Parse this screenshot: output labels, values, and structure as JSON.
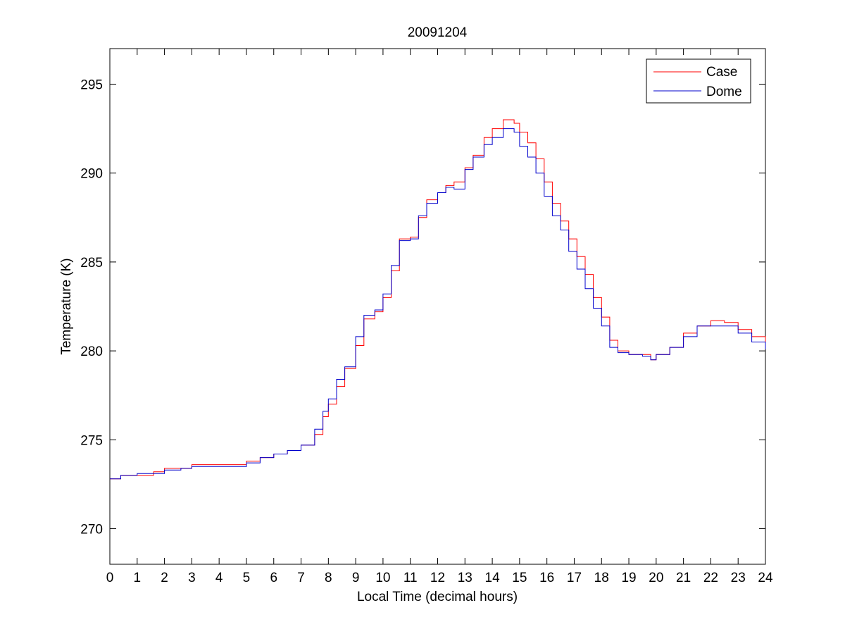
{
  "chart_data": {
    "type": "line",
    "title": "20091204",
    "xlabel": "Local Time (decimal hours)",
    "ylabel": "Temperature (K)",
    "xlim": [
      0,
      24
    ],
    "ylim": [
      268,
      297
    ],
    "xticks": [
      0,
      1,
      2,
      3,
      4,
      5,
      6,
      7,
      8,
      9,
      10,
      11,
      12,
      13,
      14,
      15,
      16,
      17,
      18,
      19,
      20,
      21,
      22,
      23,
      24
    ],
    "yticks": [
      270,
      275,
      280,
      285,
      290,
      295
    ],
    "grid": false,
    "legend_position": "top-right",
    "series": [
      {
        "name": "Case",
        "color": "#ff0000",
        "points": [
          [
            0,
            272.8
          ],
          [
            0.4,
            273.0
          ],
          [
            1.0,
            273.0
          ],
          [
            1.6,
            273.2
          ],
          [
            2.0,
            273.4
          ],
          [
            2.6,
            273.4
          ],
          [
            3.0,
            273.6
          ],
          [
            3.4,
            273.6
          ],
          [
            4.0,
            273.6
          ],
          [
            4.6,
            273.6
          ],
          [
            5.0,
            273.8
          ],
          [
            5.5,
            274.0
          ],
          [
            6.0,
            274.2
          ],
          [
            6.5,
            274.4
          ],
          [
            7.0,
            274.7
          ],
          [
            7.5,
            275.3
          ],
          [
            7.8,
            276.3
          ],
          [
            8.0,
            277.0
          ],
          [
            8.3,
            278.0
          ],
          [
            8.6,
            279.0
          ],
          [
            9.0,
            280.3
          ],
          [
            9.3,
            281.8
          ],
          [
            9.7,
            282.2
          ],
          [
            10.0,
            283.0
          ],
          [
            10.3,
            284.5
          ],
          [
            10.6,
            286.3
          ],
          [
            11.0,
            286.4
          ],
          [
            11.3,
            287.5
          ],
          [
            11.6,
            288.5
          ],
          [
            12.0,
            288.9
          ],
          [
            12.3,
            289.3
          ],
          [
            12.6,
            289.5
          ],
          [
            13.0,
            290.3
          ],
          [
            13.3,
            291.0
          ],
          [
            13.7,
            292.0
          ],
          [
            14.0,
            292.5
          ],
          [
            14.4,
            293.0
          ],
          [
            14.6,
            293.0
          ],
          [
            14.8,
            292.8
          ],
          [
            15.0,
            292.3
          ],
          [
            15.3,
            291.7
          ],
          [
            15.6,
            290.8
          ],
          [
            15.9,
            289.5
          ],
          [
            16.2,
            288.3
          ],
          [
            16.5,
            287.3
          ],
          [
            16.8,
            286.3
          ],
          [
            17.1,
            285.3
          ],
          [
            17.4,
            284.3
          ],
          [
            17.7,
            283.0
          ],
          [
            18.0,
            281.9
          ],
          [
            18.3,
            280.6
          ],
          [
            18.6,
            280.0
          ],
          [
            19.0,
            279.8
          ],
          [
            19.5,
            279.8
          ],
          [
            19.8,
            279.5
          ],
          [
            20.0,
            279.8
          ],
          [
            20.5,
            280.2
          ],
          [
            21.0,
            281.0
          ],
          [
            21.5,
            281.4
          ],
          [
            22.0,
            281.7
          ],
          [
            22.5,
            281.6
          ],
          [
            23.0,
            281.2
          ],
          [
            23.5,
            280.8
          ],
          [
            24.0,
            280.3
          ]
        ]
      },
      {
        "name": "Dome",
        "color": "#0000cc",
        "points": [
          [
            0,
            272.8
          ],
          [
            0.4,
            273.0
          ],
          [
            1.0,
            273.1
          ],
          [
            1.6,
            273.1
          ],
          [
            2.0,
            273.3
          ],
          [
            2.6,
            273.4
          ],
          [
            3.0,
            273.5
          ],
          [
            3.4,
            273.5
          ],
          [
            4.0,
            273.5
          ],
          [
            4.6,
            273.5
          ],
          [
            5.0,
            273.7
          ],
          [
            5.5,
            274.0
          ],
          [
            6.0,
            274.2
          ],
          [
            6.5,
            274.4
          ],
          [
            7.0,
            274.7
          ],
          [
            7.5,
            275.6
          ],
          [
            7.8,
            276.6
          ],
          [
            8.0,
            277.3
          ],
          [
            8.3,
            278.4
          ],
          [
            8.6,
            279.1
          ],
          [
            9.0,
            280.8
          ],
          [
            9.3,
            282.0
          ],
          [
            9.7,
            282.3
          ],
          [
            10.0,
            283.2
          ],
          [
            10.3,
            284.8
          ],
          [
            10.6,
            286.2
          ],
          [
            11.0,
            286.3
          ],
          [
            11.3,
            287.6
          ],
          [
            11.6,
            288.3
          ],
          [
            12.0,
            288.9
          ],
          [
            12.3,
            289.2
          ],
          [
            12.6,
            289.1
          ],
          [
            13.0,
            290.2
          ],
          [
            13.3,
            290.9
          ],
          [
            13.7,
            291.6
          ],
          [
            14.0,
            292.0
          ],
          [
            14.4,
            292.5
          ],
          [
            14.6,
            292.5
          ],
          [
            14.8,
            292.3
          ],
          [
            15.0,
            291.5
          ],
          [
            15.3,
            290.9
          ],
          [
            15.6,
            290.0
          ],
          [
            15.9,
            288.7
          ],
          [
            16.2,
            287.6
          ],
          [
            16.5,
            286.8
          ],
          [
            16.8,
            285.6
          ],
          [
            17.1,
            284.6
          ],
          [
            17.4,
            283.5
          ],
          [
            17.7,
            282.4
          ],
          [
            18.0,
            281.4
          ],
          [
            18.3,
            280.2
          ],
          [
            18.6,
            279.9
          ],
          [
            19.0,
            279.8
          ],
          [
            19.5,
            279.7
          ],
          [
            19.8,
            279.5
          ],
          [
            20.0,
            279.8
          ],
          [
            20.5,
            280.2
          ],
          [
            21.0,
            280.8
          ],
          [
            21.5,
            281.4
          ],
          [
            22.0,
            281.4
          ],
          [
            22.5,
            281.4
          ],
          [
            23.0,
            281.0
          ],
          [
            23.5,
            280.5
          ],
          [
            24.0,
            280.1
          ]
        ]
      }
    ]
  }
}
